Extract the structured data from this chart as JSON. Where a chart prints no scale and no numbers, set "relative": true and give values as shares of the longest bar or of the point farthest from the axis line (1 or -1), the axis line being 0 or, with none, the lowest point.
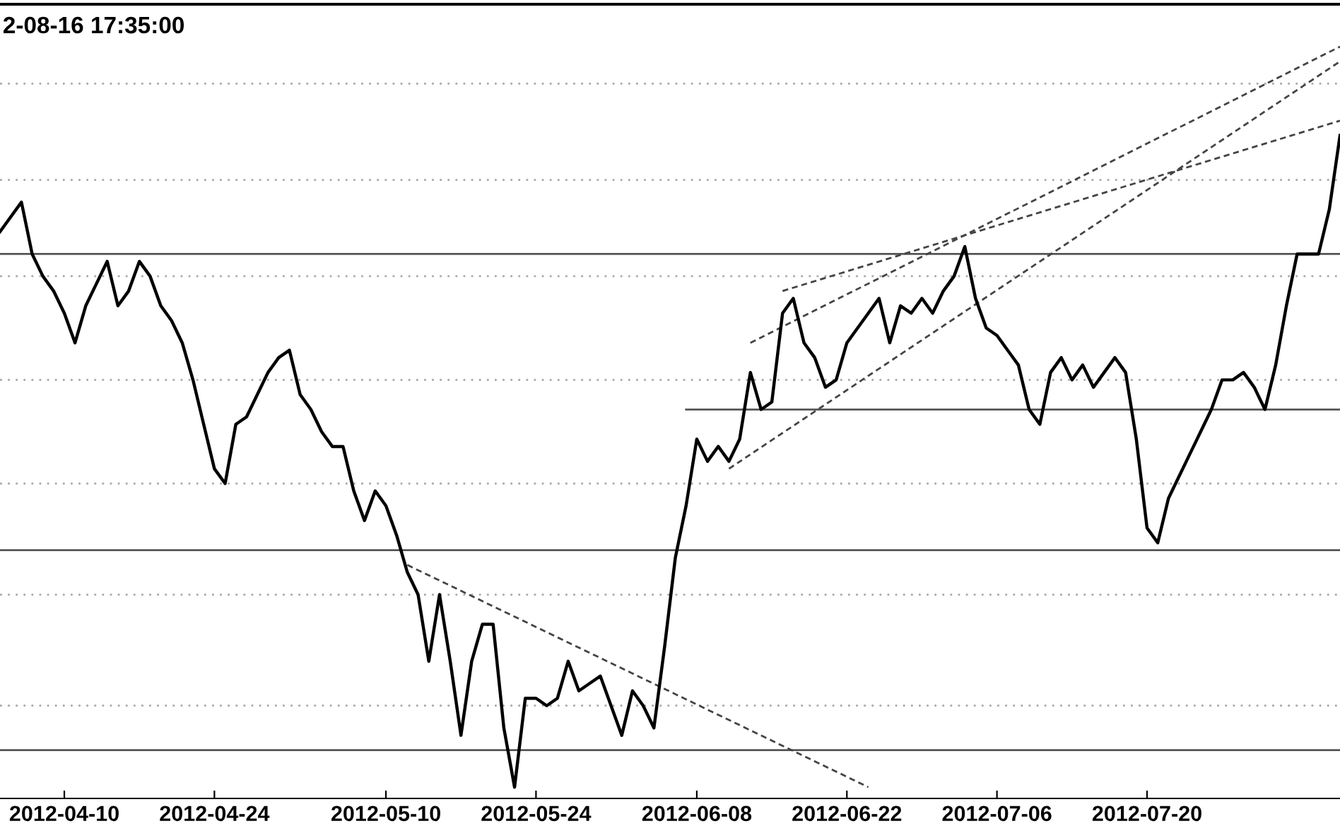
{
  "chart_data": {
    "type": "line",
    "relative": true,
    "title": "2-08-16 17:35:00",
    "xlim": [
      "2012-04-04",
      "2012-08-07"
    ],
    "xticks": [
      "2012-04-10",
      "2012-04-24",
      "2012-05-10",
      "2012-05-24",
      "2012-06-08",
      "2012-06-22",
      "2012-07-06",
      "2012-07-20"
    ],
    "series": [
      {
        "color": "#000000",
        "line_style": "solid",
        "x": [
          "2012-04-04",
          "2012-04-05",
          "2012-04-06",
          "2012-04-07",
          "2012-04-08",
          "2012-04-09",
          "2012-04-10",
          "2012-04-11",
          "2012-04-12",
          "2012-04-13",
          "2012-04-14",
          "2012-04-15",
          "2012-04-16",
          "2012-04-17",
          "2012-04-18",
          "2012-04-19",
          "2012-04-20",
          "2012-04-21",
          "2012-04-22",
          "2012-04-23",
          "2012-04-24",
          "2012-04-25",
          "2012-04-26",
          "2012-04-27",
          "2012-04-28",
          "2012-04-29",
          "2012-04-30",
          "2012-05-01",
          "2012-05-02",
          "2012-05-03",
          "2012-05-04",
          "2012-05-05",
          "2012-05-06",
          "2012-05-07",
          "2012-05-08",
          "2012-05-09",
          "2012-05-10",
          "2012-05-11",
          "2012-05-12",
          "2012-05-13",
          "2012-05-14",
          "2012-05-15",
          "2012-05-16",
          "2012-05-17",
          "2012-05-18",
          "2012-05-19",
          "2012-05-20",
          "2012-05-21",
          "2012-05-22",
          "2012-05-23",
          "2012-05-24",
          "2012-05-25",
          "2012-05-26",
          "2012-05-27",
          "2012-05-28",
          "2012-05-29",
          "2012-05-30",
          "2012-05-31",
          "2012-06-01",
          "2012-06-02",
          "2012-06-03",
          "2012-06-04",
          "2012-06-05",
          "2012-06-06",
          "2012-06-07",
          "2012-06-08",
          "2012-06-09",
          "2012-06-10",
          "2012-06-11",
          "2012-06-12",
          "2012-06-13",
          "2012-06-14",
          "2012-06-15",
          "2012-06-16",
          "2012-06-17",
          "2012-06-18",
          "2012-06-19",
          "2012-06-20",
          "2012-06-21",
          "2012-06-22",
          "2012-06-23",
          "2012-06-24",
          "2012-06-25",
          "2012-06-26",
          "2012-06-27",
          "2012-06-28",
          "2012-06-29",
          "2012-06-30",
          "2012-07-01",
          "2012-07-02",
          "2012-07-03",
          "2012-07-04",
          "2012-07-05",
          "2012-07-06",
          "2012-07-07",
          "2012-07-08",
          "2012-07-09",
          "2012-07-10",
          "2012-07-11",
          "2012-07-12",
          "2012-07-13",
          "2012-07-14",
          "2012-07-15",
          "2012-07-16",
          "2012-07-17",
          "2012-07-18",
          "2012-07-19",
          "2012-07-20",
          "2012-07-21",
          "2012-07-22",
          "2012-07-23",
          "2012-07-24",
          "2012-07-25",
          "2012-07-26",
          "2012-07-27",
          "2012-07-28",
          "2012-07-29",
          "2012-07-30",
          "2012-07-31",
          "2012-08-01",
          "2012-08-02",
          "2012-08-03",
          "2012-08-04",
          "2012-08-05",
          "2012-08-06",
          "2012-08-07"
        ],
        "values": [
          0.75,
          0.77,
          0.79,
          0.72,
          0.69,
          0.67,
          0.64,
          0.6,
          0.65,
          0.68,
          0.71,
          0.65,
          0.67,
          0.71,
          0.69,
          0.65,
          0.63,
          0.6,
          0.55,
          0.49,
          0.43,
          0.41,
          0.49,
          0.5,
          0.53,
          0.56,
          0.58,
          0.59,
          0.53,
          0.51,
          0.48,
          0.46,
          0.46,
          0.4,
          0.36,
          0.4,
          0.38,
          0.34,
          0.29,
          0.26,
          0.17,
          0.26,
          0.17,
          0.07,
          0.17,
          0.22,
          0.22,
          0.08,
          0.0,
          0.12,
          0.12,
          0.11,
          0.12,
          0.17,
          0.13,
          0.14,
          0.15,
          0.11,
          0.07,
          0.13,
          0.11,
          0.08,
          0.19,
          0.31,
          0.38,
          0.47,
          0.44,
          0.46,
          0.44,
          0.47,
          0.56,
          0.51,
          0.52,
          0.64,
          0.66,
          0.6,
          0.58,
          0.54,
          0.55,
          0.6,
          0.62,
          0.64,
          0.66,
          0.6,
          0.65,
          0.64,
          0.66,
          0.64,
          0.67,
          0.69,
          0.73,
          0.66,
          0.62,
          0.61,
          0.59,
          0.57,
          0.51,
          0.49,
          0.56,
          0.58,
          0.55,
          0.57,
          0.54,
          0.56,
          0.58,
          0.56,
          0.47,
          0.35,
          0.33,
          0.39,
          0.42,
          0.45,
          0.48,
          0.51,
          0.55,
          0.55,
          0.56,
          0.54,
          0.51,
          0.57,
          0.65,
          0.72,
          0.72,
          0.72,
          0.78,
          0.88
        ]
      },
      {
        "type": "line",
        "color": "#444444",
        "line_style": "dashed",
        "x": [
          "2012-06-13",
          "2012-08-07"
        ],
        "values": [
          0.6,
          1.0
        ]
      },
      {
        "type": "line",
        "color": "#444444",
        "line_style": "dashed",
        "x": [
          "2012-06-16",
          "2012-08-07"
        ],
        "values": [
          0.67,
          0.9
        ]
      },
      {
        "type": "line",
        "color": "#444444",
        "line_style": "dashed",
        "x": [
          "2012-06-11",
          "2012-08-07"
        ],
        "values": [
          0.43,
          0.98
        ]
      },
      {
        "type": "line",
        "color": "#444444",
        "line_style": "dashed",
        "x": [
          "2012-05-12",
          "2012-06-24"
        ],
        "values": [
          0.3,
          0.0
        ]
      },
      {
        "type": "line",
        "color": "#555555",
        "line_style": "solid",
        "x": [
          "2012-06-07",
          "2012-08-07"
        ],
        "values": [
          0.51,
          0.51
        ]
      }
    ],
    "ref_lines": [
      {
        "axis": "y",
        "value": 0.95,
        "color": "#aaaaaa",
        "line_style": "dotted"
      },
      {
        "axis": "y",
        "value": 0.82,
        "color": "#aaaaaa",
        "line_style": "dotted"
      },
      {
        "axis": "y",
        "value": 0.69,
        "color": "#aaaaaa",
        "line_style": "dotted"
      },
      {
        "axis": "y",
        "value": 0.55,
        "color": "#aaaaaa",
        "line_style": "dotted"
      },
      {
        "axis": "y",
        "value": 0.41,
        "color": "#aaaaaa",
        "line_style": "dotted"
      },
      {
        "axis": "y",
        "value": 0.26,
        "color": "#aaaaaa",
        "line_style": "dotted"
      },
      {
        "axis": "y",
        "value": 0.11,
        "color": "#aaaaaa",
        "line_style": "dotted"
      },
      {
        "axis": "y",
        "value": 0.72,
        "color": "#555555",
        "line_style": "solid"
      },
      {
        "axis": "y",
        "value": 0.32,
        "color": "#555555",
        "line_style": "solid"
      },
      {
        "axis": "y",
        "value": 0.05,
        "color": "#555555",
        "line_style": "solid"
      }
    ]
  }
}
